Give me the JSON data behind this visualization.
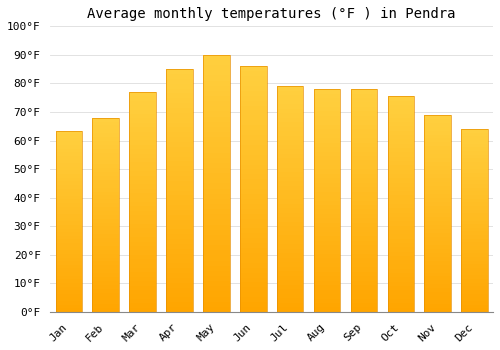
{
  "title": "Average monthly temperatures (°F ) in Pendra",
  "months": [
    "Jan",
    "Feb",
    "Mar",
    "Apr",
    "May",
    "Jun",
    "Jul",
    "Aug",
    "Sep",
    "Oct",
    "Nov",
    "Dec"
  ],
  "values": [
    63.5,
    68.0,
    77.0,
    85.0,
    90.0,
    86.0,
    79.0,
    78.0,
    78.0,
    75.5,
    69.0,
    64.0
  ],
  "bar_color_top": "#FFC020",
  "bar_color_bottom": "#FFA020",
  "bar_edge_color": "#E89000",
  "background_color": "#FFFFFF",
  "grid_color": "#DDDDDD",
  "ylim": [
    0,
    100
  ],
  "ytick_step": 10,
  "title_fontsize": 10,
  "tick_fontsize": 8,
  "font_family": "monospace"
}
